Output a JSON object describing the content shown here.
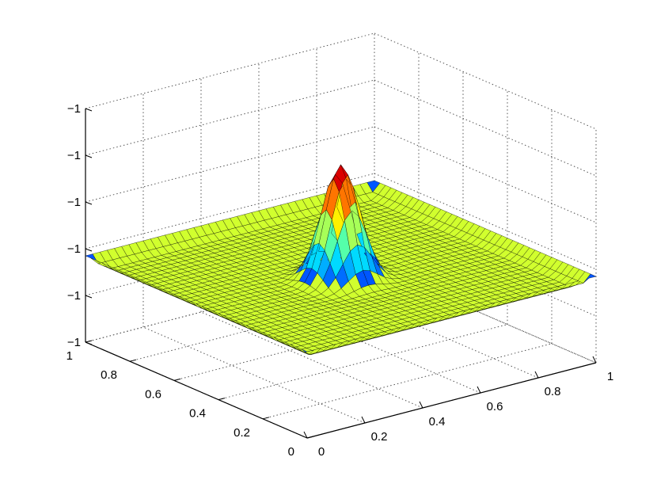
{
  "chart_data": {
    "type": "surface",
    "title": "",
    "xlabel": "",
    "ylabel": "",
    "zlabel": "",
    "x_ticks": [
      "0",
      "0.2",
      "0.4",
      "0.6",
      "0.8",
      "1"
    ],
    "y_ticks": [
      "0",
      "0.2",
      "0.4",
      "0.6",
      "0.8",
      "1"
    ],
    "z_ticks": [
      "−1",
      "−1",
      "−1",
      "−1",
      "−1",
      "−1"
    ],
    "xlim": [
      0,
      1
    ],
    "ylim": [
      0,
      1
    ],
    "grid": true,
    "colormap": "jet",
    "mesh_color": "#000000",
    "grid_points": 41,
    "surface": {
      "description_values": {
        "plateau": 0.0,
        "peak_center": [
          0.5,
          0.5
        ],
        "peak_height": 1.0,
        "peak_width": 0.055,
        "edge_ridge_height": 0.08
      }
    }
  }
}
